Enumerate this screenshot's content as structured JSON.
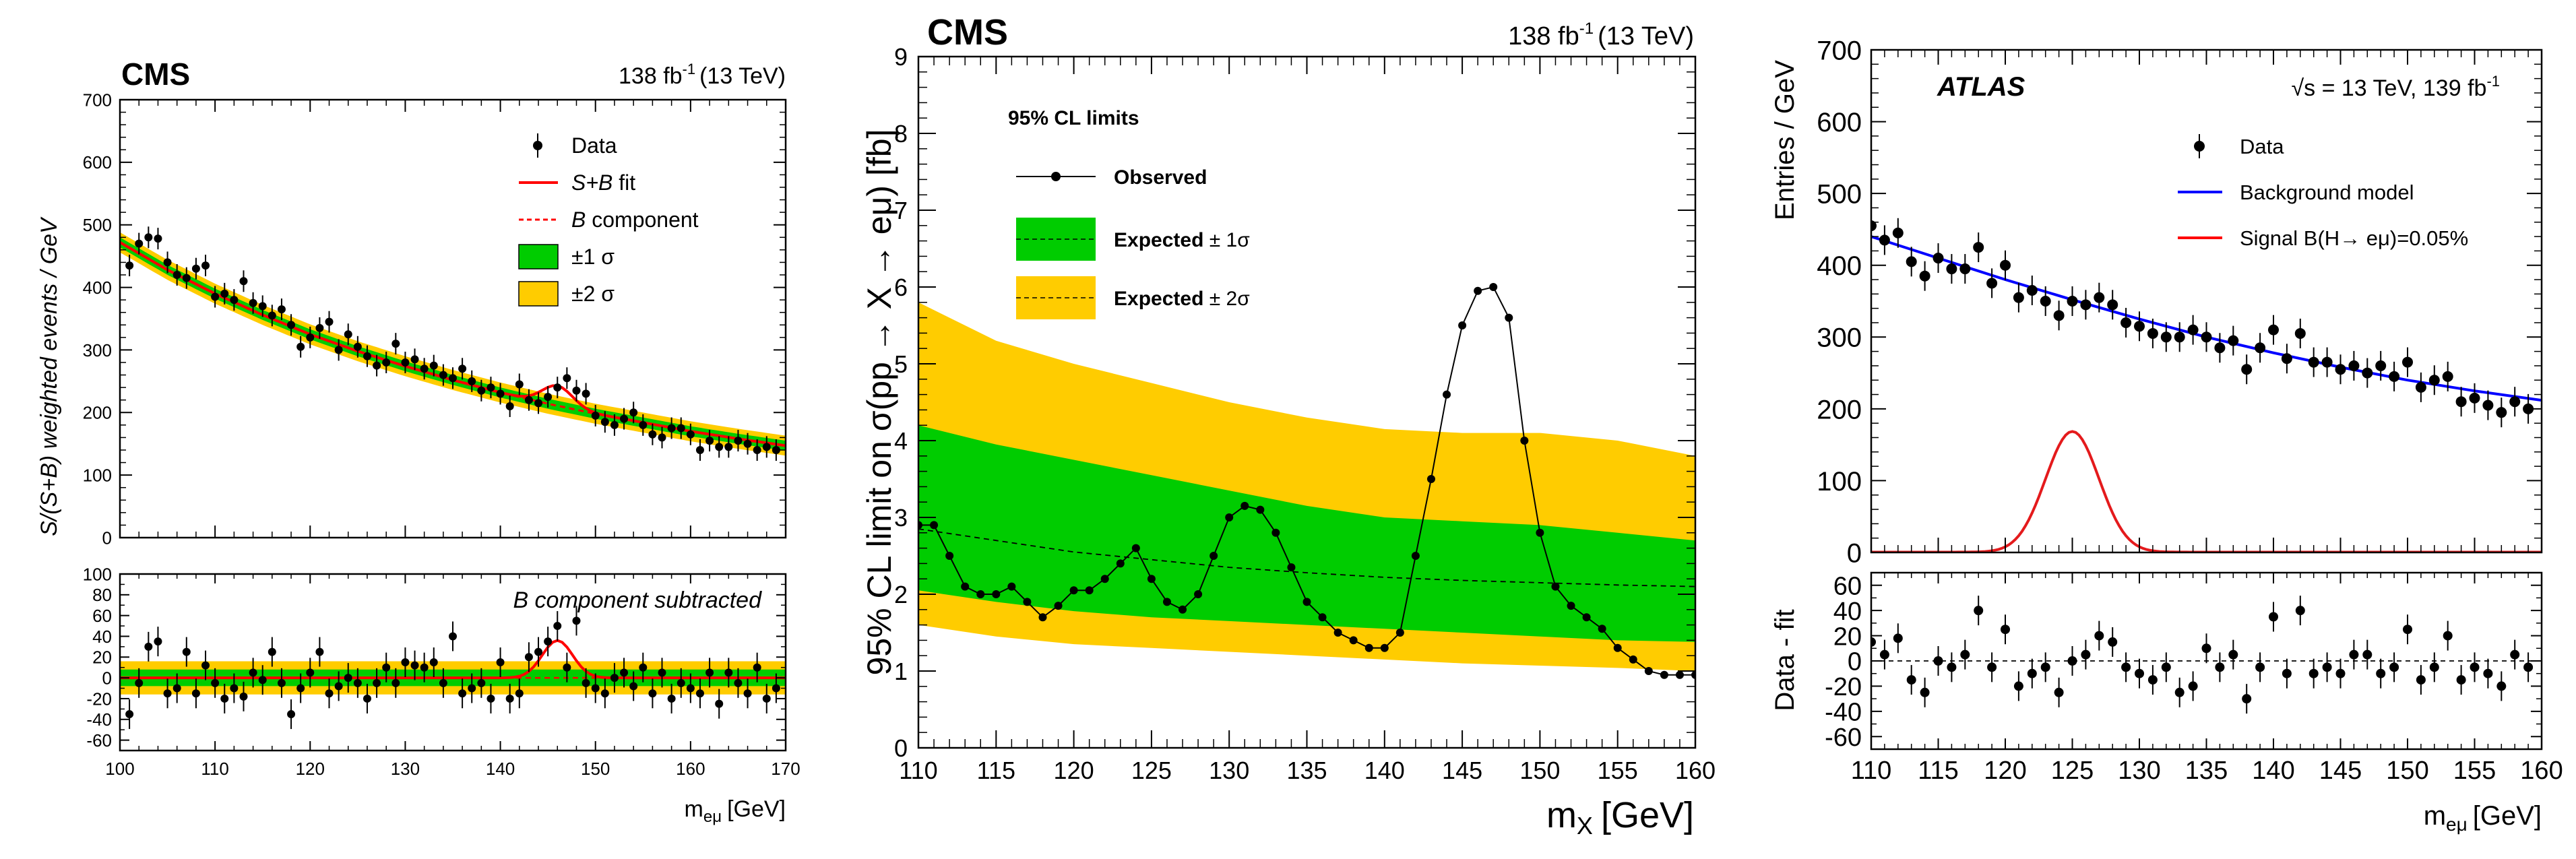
{
  "chart_data": [
    {
      "id": "cms_fit",
      "type": "line",
      "experiment": "CMS",
      "lumi": "138 fb",
      "lumi_sup": "-1",
      "energy": "(13 TeV)",
      "xlabel": "m",
      "xlabel_sub": "eμ",
      "xlabel_unit": "[GeV]",
      "ylabel": "S/(S+B) weighted events / GeV",
      "xlim": [
        100,
        170
      ],
      "xticks": [
        100,
        110,
        120,
        130,
        140,
        150,
        160,
        170
      ],
      "top": {
        "ylim": [
          0,
          700
        ],
        "yticks": [
          0,
          100,
          200,
          300,
          400,
          500,
          600,
          700
        ],
        "legend": [
          {
            "label": "Data",
            "kind": "marker",
            "color": "#000000"
          },
          {
            "label": "S+B fit",
            "kind": "line",
            "color": "#ff0000"
          },
          {
            "label": "B component",
            "kind": "dashed",
            "color": "#ff0000"
          },
          {
            "label": "±1 σ",
            "kind": "box",
            "color": "#00cc00"
          },
          {
            "label": "±2 σ",
            "kind": "box",
            "color": "#ffcc00"
          }
        ],
        "data_x": [
          101,
          102,
          103,
          104,
          105,
          106,
          107,
          108,
          109,
          110,
          111,
          112,
          113,
          114,
          115,
          116,
          117,
          118,
          119,
          120,
          121,
          122,
          123,
          124,
          125,
          126,
          127,
          128,
          129,
          130,
          131,
          132,
          133,
          134,
          135,
          136,
          137,
          138,
          139,
          140,
          141,
          142,
          143,
          144,
          145,
          146,
          147,
          148,
          149,
          150,
          151,
          152,
          153,
          154,
          155,
          156,
          157,
          158,
          159,
          160,
          161,
          162,
          163,
          164,
          165,
          166,
          167,
          168,
          169
        ],
        "data_y": [
          435,
          470,
          480,
          478,
          440,
          420,
          415,
          430,
          435,
          385,
          390,
          380,
          410,
          375,
          370,
          355,
          365,
          340,
          305,
          320,
          335,
          345,
          300,
          325,
          305,
          290,
          275,
          280,
          310,
          280,
          285,
          270,
          275,
          260,
          255,
          270,
          250,
          235,
          240,
          230,
          210,
          245,
          220,
          215,
          225,
          240,
          255,
          235,
          230,
          195,
          185,
          180,
          190,
          200,
          180,
          165,
          160,
          175,
          175,
          165,
          140,
          155,
          145,
          145,
          155,
          150,
          140,
          145,
          140
        ],
        "bkg_fit_x": [
          100,
          105,
          110,
          115,
          120,
          125,
          130,
          135,
          140,
          145,
          150,
          155,
          160,
          165,
          170
        ],
        "bkg_fit_y": [
          472,
          428,
          390,
          356,
          325,
          298,
          274,
          252,
          232,
          214,
          198,
          184,
          170,
          158,
          147
        ],
        "signal": {
          "mass": 146,
          "amplitude": 32,
          "width": 1.6
        }
      },
      "bottom": {
        "title": "B component subtracted",
        "ylim": [
          -70,
          100
        ],
        "yticks": [
          -60,
          -40,
          -20,
          0,
          20,
          40,
          60,
          80,
          100
        ],
        "data_x": [
          101,
          102,
          103,
          104,
          105,
          106,
          107,
          108,
          109,
          110,
          111,
          112,
          113,
          114,
          115,
          116,
          117,
          118,
          119,
          120,
          121,
          122,
          123,
          124,
          125,
          126,
          127,
          128,
          129,
          130,
          131,
          132,
          133,
          134,
          135,
          136,
          137,
          138,
          139,
          140,
          141,
          142,
          143,
          144,
          145,
          146,
          147,
          148,
          149,
          150,
          151,
          152,
          153,
          154,
          155,
          156,
          157,
          158,
          159,
          160,
          161,
          162,
          163,
          164,
          165,
          166,
          167,
          168,
          169
        ],
        "data_y": [
          -35,
          -5,
          30,
          35,
          -15,
          -10,
          25,
          -15,
          12,
          -5,
          -20,
          -10,
          -18,
          5,
          -2,
          25,
          -5,
          -35,
          -10,
          5,
          25,
          -15,
          -8,
          0,
          -5,
          -20,
          -5,
          10,
          -5,
          15,
          12,
          10,
          15,
          -5,
          40,
          -15,
          -10,
          -5,
          -20,
          15,
          -20,
          -15,
          20,
          25,
          35,
          50,
          10,
          55,
          -5,
          -10,
          -15,
          0,
          5,
          -8,
          10,
          -15,
          5,
          -20,
          -5,
          -10,
          -15,
          5,
          -25,
          5,
          -5,
          -15,
          10,
          -20,
          -10
        ],
        "signal": {
          "mass": 146,
          "amplitude": 36,
          "width": 1.6
        }
      }
    },
    {
      "id": "cms_limits",
      "type": "line",
      "experiment": "CMS",
      "lumi": "138 fb",
      "lumi_sup": "-1",
      "energy": "(13 TeV)",
      "title": "95% CL limits",
      "xlabel": "m",
      "xlabel_sub": "X",
      "xlabel_unit": "[GeV]",
      "ylabel": "95% CL limit on σ(pp → X → eμ) [fb]",
      "xlim": [
        110,
        160
      ],
      "ylim": [
        0,
        9
      ],
      "xticks": [
        110,
        115,
        120,
        125,
        130,
        135,
        140,
        145,
        150,
        155,
        160
      ],
      "yticks": [
        0,
        1,
        2,
        3,
        4,
        5,
        6,
        7,
        8,
        9
      ],
      "legend": [
        {
          "label": "Observed",
          "kind": "marker-line",
          "color": "#000000"
        },
        {
          "label": "Expected",
          "suffix": "± 1σ",
          "kind": "box-dashed",
          "color": "#00cc00"
        },
        {
          "label": "Expected",
          "suffix": "± 2σ",
          "kind": "box-dashed",
          "color": "#ffcc00"
        }
      ],
      "expected_x": [
        110,
        115,
        120,
        125,
        130,
        135,
        140,
        145,
        150,
        155,
        160
      ],
      "expected": [
        2.85,
        2.7,
        2.55,
        2.45,
        2.35,
        2.28,
        2.22,
        2.18,
        2.15,
        2.12,
        2.1
      ],
      "band1_lo": [
        2.05,
        1.9,
        1.78,
        1.7,
        1.65,
        1.6,
        1.55,
        1.5,
        1.45,
        1.4,
        1.38
      ],
      "band1_hi": [
        4.2,
        3.95,
        3.75,
        3.55,
        3.35,
        3.15,
        3.0,
        2.95,
        2.9,
        2.8,
        2.7
      ],
      "band2_lo": [
        1.6,
        1.45,
        1.35,
        1.3,
        1.25,
        1.2,
        1.15,
        1.1,
        1.07,
        1.04,
        1.0
      ],
      "band2_hi": [
        5.8,
        5.3,
        5.0,
        4.75,
        4.5,
        4.3,
        4.15,
        4.1,
        4.1,
        4.0,
        3.8
      ],
      "observed_x": [
        110,
        111,
        112,
        113,
        114,
        115,
        116,
        117,
        118,
        119,
        120,
        121,
        122,
        123,
        124,
        125,
        126,
        127,
        128,
        129,
        130,
        131,
        132,
        133,
        134,
        135,
        136,
        137,
        138,
        139,
        140,
        141,
        142,
        143,
        144,
        145,
        146,
        147,
        148,
        149,
        150,
        151,
        152,
        153,
        154,
        155,
        156,
        157,
        158,
        159,
        160
      ],
      "observed": [
        2.9,
        2.9,
        2.5,
        2.1,
        2.0,
        2.0,
        2.1,
        1.9,
        1.7,
        1.85,
        2.05,
        2.05,
        2.2,
        2.4,
        2.6,
        2.2,
        1.9,
        1.8,
        2.0,
        2.5,
        3.0,
        3.15,
        3.1,
        2.8,
        2.35,
        1.9,
        1.7,
        1.5,
        1.4,
        1.3,
        1.3,
        1.5,
        2.5,
        3.5,
        4.6,
        5.5,
        5.95,
        6.0,
        5.6,
        4.0,
        2.8,
        2.1,
        1.85,
        1.7,
        1.55,
        1.3,
        1.15,
        1.0,
        0.95,
        0.95,
        0.95
      ]
    },
    {
      "id": "atlas",
      "type": "line",
      "experiment": "ATLAS",
      "energy_label": "√s = 13 TeV, 139 fb",
      "energy_sup": "-1",
      "xlabel": "m",
      "xlabel_sub": "eμ",
      "xlabel_unit": "[GeV]",
      "xlim": [
        110,
        160
      ],
      "xticks": [
        110,
        115,
        120,
        125,
        130,
        135,
        140,
        145,
        150,
        155,
        160
      ],
      "top": {
        "ylabel": "Entries / GeV",
        "ylim": [
          0,
          700
        ],
        "yticks": [
          0,
          100,
          200,
          300,
          400,
          500,
          600,
          700
        ],
        "legend": [
          {
            "label": "Data",
            "kind": "marker",
            "color": "#000000"
          },
          {
            "label": "Background model",
            "kind": "line",
            "color": "#0000ff"
          },
          {
            "label": "Signal B(H→ eμ)=0.05%",
            "kind": "line",
            "color": "#ff0000"
          }
        ],
        "data_x": [
          110,
          111,
          112,
          113,
          114,
          115,
          116,
          117,
          118,
          119,
          120,
          121,
          122,
          123,
          124,
          125,
          126,
          127,
          128,
          129,
          130,
          131,
          132,
          133,
          134,
          135,
          136,
          137,
          138,
          139,
          140,
          141,
          142,
          143,
          144,
          145,
          146,
          147,
          148,
          149,
          150,
          151,
          152,
          153,
          154,
          155,
          156,
          157,
          158,
          159
        ],
        "data_y": [
          455,
          435,
          445,
          405,
          385,
          410,
          395,
          395,
          425,
          375,
          400,
          355,
          365,
          350,
          330,
          350,
          345,
          355,
          345,
          320,
          315,
          305,
          300,
          300,
          310,
          300,
          285,
          295,
          255,
          285,
          310,
          270,
          305,
          265,
          265,
          255,
          260,
          250,
          260,
          245,
          265,
          230,
          240,
          245,
          210,
          215,
          205,
          195,
          210,
          200
        ],
        "bkg_x": [
          110,
          115,
          120,
          125,
          130,
          135,
          140,
          145,
          150,
          155,
          160
        ],
        "bkg_y": [
          440,
          410,
          380,
          352,
          325,
          300,
          278,
          258,
          240,
          225,
          212
        ],
        "signal": {
          "mass": 125,
          "amplitude": 168,
          "width": 2.0
        }
      },
      "bottom": {
        "ylabel": "Data - fit",
        "ylim": [
          -70,
          70
        ],
        "yticks": [
          -60,
          -40,
          -20,
          0,
          20,
          40,
          60
        ],
        "data_x": [
          110,
          111,
          112,
          113,
          114,
          115,
          116,
          117,
          118,
          119,
          120,
          121,
          122,
          123,
          124,
          125,
          126,
          127,
          128,
          129,
          130,
          131,
          132,
          133,
          134,
          135,
          136,
          137,
          138,
          139,
          140,
          141,
          142,
          143,
          144,
          145,
          146,
          147,
          148,
          149,
          150,
          151,
          152,
          153,
          154,
          155,
          156,
          157,
          158,
          159
        ],
        "data_y": [
          15,
          5,
          18,
          -15,
          -25,
          0,
          -5,
          5,
          40,
          -5,
          25,
          -20,
          -10,
          -5,
          -25,
          0,
          5,
          20,
          15,
          -5,
          -10,
          -15,
          -5,
          -25,
          -20,
          10,
          -5,
          5,
          -30,
          -5,
          35,
          -10,
          40,
          -10,
          -5,
          -10,
          5,
          5,
          -10,
          -5,
          25,
          -15,
          -5,
          20,
          -15,
          -5,
          -10,
          -20,
          5,
          -5
        ]
      }
    }
  ]
}
